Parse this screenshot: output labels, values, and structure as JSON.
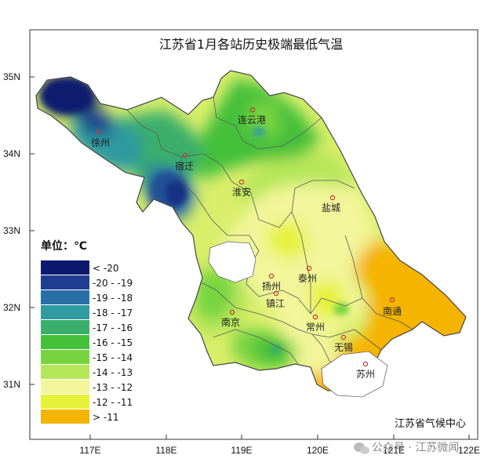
{
  "title": "江苏省1月各站历史极端最低气温",
  "credit": "江苏省气候中心",
  "watermark": "公众号 · 江苏微闻",
  "axes": {
    "x_ticks": [
      "117E",
      "118E",
      "119E",
      "120E",
      "121E",
      "122E"
    ],
    "y_ticks": [
      "35N",
      "34N",
      "33N",
      "32N",
      "31N"
    ]
  },
  "legend": {
    "title": "单位：℃",
    "items": [
      {
        "label": "< -20",
        "color": "#0b1a6e"
      },
      {
        "label": "-20 - -19",
        "color": "#1f3d8f"
      },
      {
        "label": "-19 - -18",
        "color": "#2a70a8"
      },
      {
        "label": "-18 - -17",
        "color": "#2f9aa0"
      },
      {
        "label": "-17 - -16",
        "color": "#3aae6a"
      },
      {
        "label": "-16 - -15",
        "color": "#45c03a"
      },
      {
        "label": "-15 - -14",
        "color": "#77d440"
      },
      {
        "label": "-14 - -13",
        "color": "#b6e65a"
      },
      {
        "label": "-13 - -12",
        "color": "#f2f59a"
      },
      {
        "label": "-12 - -11",
        "color": "#e6f23a"
      },
      {
        "label": "> -11",
        "color": "#f5b400"
      }
    ]
  },
  "cities": [
    {
      "name": "徐州"
    },
    {
      "name": "连云港"
    },
    {
      "name": "宿迁"
    },
    {
      "name": "淮安"
    },
    {
      "name": "盐城"
    },
    {
      "name": "扬州"
    },
    {
      "name": "泰州"
    },
    {
      "name": "镇江"
    },
    {
      "name": "南京"
    },
    {
      "name": "常州"
    },
    {
      "name": "无锡"
    },
    {
      "name": "南通"
    },
    {
      "name": "苏州"
    }
  ]
}
